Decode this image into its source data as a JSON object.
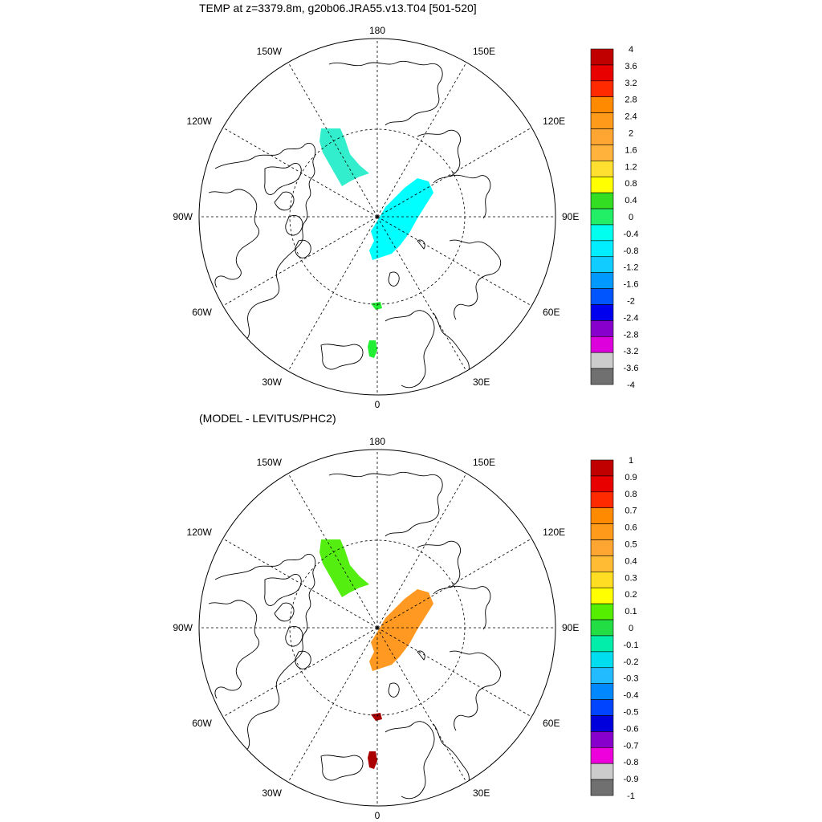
{
  "panels": [
    {
      "title": "TEMP at z=3379.8m, g20b06.JRA55.v13.T04 [501-520]",
      "lon_labels": [
        "180",
        "150E",
        "120E",
        "90E",
        "60E",
        "30E",
        "0",
        "30W",
        "60W",
        "90W",
        "120W",
        "150W"
      ],
      "colorbar": {
        "labels": [
          "4",
          "3.6",
          "3.2",
          "2.8",
          "2.4",
          "2",
          "1.6",
          "1.2",
          "0.8",
          "0.4",
          "0",
          "-0.4",
          "-0.8",
          "-1.2",
          "-1.6",
          "-2",
          "-2.4",
          "-2.8",
          "-3.2",
          "-3.6",
          "-4"
        ],
        "colors": [
          "#c00000",
          "#e80000",
          "#ff2a00",
          "#ff8a00",
          "#ff9a1a",
          "#ffa632",
          "#ffb23c",
          "#ffe030",
          "#ffff00",
          "#33dd22",
          "#22ee66",
          "#00ffee",
          "#00eeff",
          "#11ccff",
          "#0099ff",
          "#0055ff",
          "#0000ee",
          "#8800cc",
          "#dd00dd",
          "#cccccc",
          "#707070"
        ]
      },
      "region_fills": [
        "#33eecc",
        "#00ffff",
        "#22ee33",
        "#22ee33"
      ]
    },
    {
      "title": "(MODEL - LEVITUS/PHC2)",
      "lon_labels": [
        "180",
        "150E",
        "120E",
        "90E",
        "60E",
        "30E",
        "0",
        "30W",
        "60W",
        "90W",
        "120W",
        "150W"
      ],
      "colorbar": {
        "labels": [
          "1",
          "0.9",
          "0.8",
          "0.7",
          "0.6",
          "0.5",
          "0.4",
          "0.3",
          "0.2",
          "0.1",
          "0",
          "-0.1",
          "-0.2",
          "-0.3",
          "-0.4",
          "-0.5",
          "-0.6",
          "-0.7",
          "-0.8",
          "-0.9",
          "-1"
        ],
        "colors": [
          "#c00000",
          "#e80000",
          "#ff2a00",
          "#ff8a00",
          "#ff9a1a",
          "#ffa632",
          "#ffbb33",
          "#ffdd22",
          "#ffff00",
          "#55ee00",
          "#22dd44",
          "#00eeaa",
          "#00ddee",
          "#22bbff",
          "#0088ff",
          "#0044ff",
          "#0000dd",
          "#8800cc",
          "#ee00dd",
          "#cccccc",
          "#707070"
        ]
      },
      "region_fills": [
        "#55ee11",
        "#ff9922",
        "#aa0000",
        "#aa0000"
      ]
    }
  ]
}
